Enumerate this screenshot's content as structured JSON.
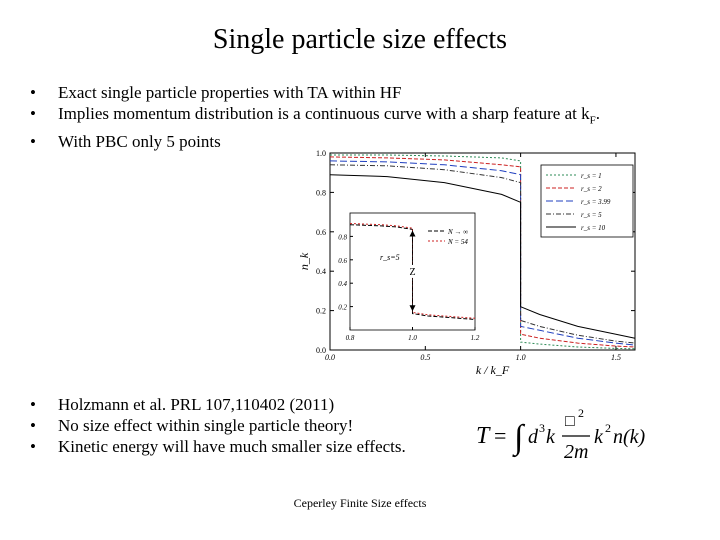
{
  "slide": {
    "title": "Single particle size effects",
    "bullets_top": [
      {
        "text": "Exact single particle properties with TA within HF"
      },
      {
        "text": "Implies momentum distribution is a continuous curve with a sharp feature at k",
        "sub": "F",
        "suffix": "."
      },
      {
        "text": "With PBC only 5 points"
      }
    ],
    "bullets_bottom": [
      {
        "text": "Holzmann et al. PRL 107,110402 (2011)"
      },
      {
        "text": "No size effect within single particle theory!"
      },
      {
        "text": "Kinetic energy will have much smaller size effects."
      }
    ],
    "bullet_glyph": "•",
    "footer": "Ceperley Finite Size effects"
  },
  "chart_data": [
    {
      "type": "line",
      "xlabel": "k / k_F",
      "ylabel": "n_k",
      "xlim": [
        0.0,
        1.6
      ],
      "ylim": [
        0.0,
        1.0
      ],
      "xticks": [
        "0.0",
        "0.5",
        "1.0",
        "1.5"
      ],
      "yticks": [
        "0.0",
        "0.2",
        "0.4",
        "0.6",
        "0.8",
        "1.0"
      ],
      "legend": {
        "position": "right",
        "entries": [
          {
            "label": "r_s = 1",
            "color": "#2e8b57",
            "dash": "2,2"
          },
          {
            "label": "r_s = 2",
            "color": "#cc2222",
            "dash": "4,2"
          },
          {
            "label": "r_s = 3.99",
            "color": "#1f3fbf",
            "dash": "7,3"
          },
          {
            "label": "r_s = 5",
            "color": "#333333",
            "dash": "5,2,1,2"
          },
          {
            "label": "r_s = 10",
            "color": "#000000",
            "dash": ""
          }
        ]
      },
      "series": [
        {
          "name": "r_s = 1",
          "color": "#2e8b57",
          "dash": "2,2",
          "x": [
            0.0,
            0.3,
            0.6,
            0.9,
            1.0,
            1.0,
            1.1,
            1.3,
            1.5,
            1.6
          ],
          "y": [
            0.99,
            0.99,
            0.985,
            0.975,
            0.96,
            0.04,
            0.03,
            0.015,
            0.008,
            0.006
          ]
        },
        {
          "name": "r_s = 2",
          "color": "#cc2222",
          "dash": "4,2",
          "x": [
            0.0,
            0.3,
            0.6,
            0.9,
            1.0,
            1.0,
            1.1,
            1.3,
            1.5,
            1.6
          ],
          "y": [
            0.98,
            0.975,
            0.965,
            0.94,
            0.93,
            0.08,
            0.06,
            0.035,
            0.02,
            0.015
          ]
        },
        {
          "name": "r_s = 3.99",
          "color": "#1f3fbf",
          "dash": "7,3",
          "x": [
            0.0,
            0.3,
            0.6,
            0.9,
            1.0,
            1.0,
            1.1,
            1.3,
            1.5,
            1.6
          ],
          "y": [
            0.96,
            0.955,
            0.94,
            0.91,
            0.89,
            0.12,
            0.1,
            0.06,
            0.035,
            0.025
          ]
        },
        {
          "name": "r_s = 5",
          "color": "#333333",
          "dash": "5,2,1,2",
          "x": [
            0.0,
            0.3,
            0.6,
            0.9,
            1.0,
            1.0,
            1.1,
            1.3,
            1.5,
            1.6
          ],
          "y": [
            0.94,
            0.935,
            0.915,
            0.875,
            0.85,
            0.15,
            0.12,
            0.075,
            0.045,
            0.035
          ]
        },
        {
          "name": "r_s = 10",
          "color": "#000000",
          "dash": "",
          "x": [
            0.0,
            0.3,
            0.6,
            0.9,
            1.0,
            1.0,
            1.1,
            1.3,
            1.5,
            1.6
          ],
          "y": [
            0.89,
            0.88,
            0.85,
            0.79,
            0.75,
            0.22,
            0.18,
            0.12,
            0.08,
            0.06
          ]
        }
      ]
    },
    {
      "type": "line",
      "role": "inset",
      "annotation": "r_s=5",
      "marker_label": "Z",
      "xlim": [
        0.8,
        1.2
      ],
      "ylim": [
        0.0,
        1.0
      ],
      "xticks": [
        "0.8",
        "1.0",
        "1.2"
      ],
      "yticks": [
        "0.2",
        "0.4",
        "0.6",
        "0.8"
      ],
      "legend": {
        "position": "top-right",
        "entries": [
          {
            "label": "N → ∞",
            "color": "#000000",
            "dash": "4,2"
          },
          {
            "label": "N = 54",
            "color": "#cc2222",
            "dash": "2,2"
          }
        ]
      },
      "series": [
        {
          "name": "N → ∞",
          "color": "#000000",
          "dash": "4,2",
          "x": [
            0.8,
            0.9,
            0.95,
            1.0,
            1.0,
            1.05,
            1.1,
            1.2
          ],
          "y": [
            0.9,
            0.89,
            0.88,
            0.86,
            0.14,
            0.12,
            0.11,
            0.09
          ]
        },
        {
          "name": "N = 54",
          "color": "#cc2222",
          "dash": "2,2",
          "x": [
            0.8,
            0.9,
            0.95,
            1.0,
            1.0,
            1.05,
            1.1,
            1.2
          ],
          "y": [
            0.91,
            0.9,
            0.89,
            0.87,
            0.15,
            0.13,
            0.12,
            0.1
          ]
        }
      ]
    }
  ],
  "formula": {
    "lhs": "T",
    "equals": "=",
    "integral": "∫",
    "measure": "d",
    "power": "3",
    "var": "k",
    "hbar_placeholder": "□",
    "hbar_power": "2",
    "denominator": "2m",
    "rhs_k": "k",
    "rhs_power": "2",
    "rhs_fn": "n(k)"
  }
}
